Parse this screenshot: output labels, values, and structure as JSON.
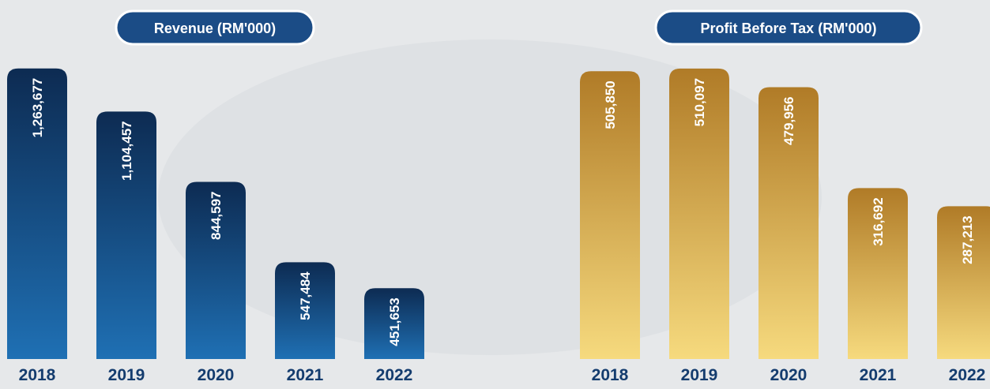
{
  "chart_data": [
    {
      "type": "bar",
      "title": "Revenue (RM'000)",
      "categories": [
        "2018",
        "2019",
        "2020",
        "2021",
        "2022"
      ],
      "values": [
        1263677,
        1104457,
        844597,
        547484,
        451653
      ],
      "value_labels": [
        "1,263,677",
        "1,104,457",
        "844,597",
        "547,484",
        "451,653"
      ],
      "colors": [
        "#0d2b52",
        "#1f70b4"
      ],
      "ylim": [
        190000,
        1400000
      ]
    },
    {
      "type": "bar",
      "title": "Profit Before Tax (RM'000)",
      "categories": [
        "2018",
        "2019",
        "2020",
        "2021",
        "2022"
      ],
      "values": [
        505850,
        510097,
        479956,
        316692,
        287213
      ],
      "value_labels": [
        "505,850",
        "510,097",
        "479,956",
        "316,692",
        "287,213"
      ],
      "colors": [
        "#b07b27",
        "#f6da7e"
      ],
      "ylim": [
        40000,
        570000
      ]
    }
  ]
}
